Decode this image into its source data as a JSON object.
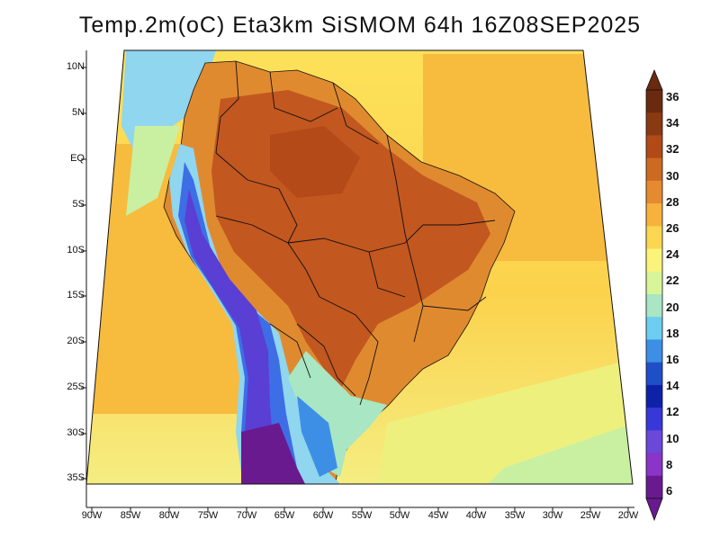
{
  "title": "Temp.2m(oC) Eta3km SiSMOM 64h 16Z08SEP2025",
  "colors": {
    "ocean_warm": "#f7bb3e",
    "ocean_mid": "#fde15a",
    "ocean_cool": "#f2f07c",
    "ocean_cold": "#c9f0a1",
    "land_hot": "#e08a30",
    "land_very_hot": "#c2571f",
    "andes_cold": "#5a3fd4",
    "andes_coldest": "#6a1a8f",
    "coast_cool": "#8fd6ee",
    "border": "#111111"
  },
  "axes": {
    "lat_labels": [
      "10N",
      "5N",
      "EQ",
      "5S",
      "10S",
      "15S",
      "20S",
      "25S",
      "30S",
      "35S"
    ],
    "lon_labels": [
      "90W",
      "85W",
      "80W",
      "75W",
      "70W",
      "65W",
      "60W",
      "55W",
      "50W",
      "45W",
      "40W",
      "35W",
      "30W",
      "25W",
      "20W"
    ]
  },
  "colorbar": {
    "labels": [
      "36",
      "34",
      "32",
      "30",
      "28",
      "26",
      "24",
      "22",
      "20",
      "18",
      "16",
      "14",
      "12",
      "10",
      "8",
      "6"
    ],
    "colors": [
      "#6b2a10",
      "#8a3a12",
      "#b24a18",
      "#cd6a22",
      "#e58a30",
      "#f7b13c",
      "#fbd650",
      "#fbf47a",
      "#d8f59a",
      "#a8e6c4",
      "#6ccdf0",
      "#3d8fe6",
      "#1f4fc8",
      "#0d22a8",
      "#3838d8",
      "#6a48d8",
      "#8a34c8",
      "#6a1a8f"
    ]
  }
}
